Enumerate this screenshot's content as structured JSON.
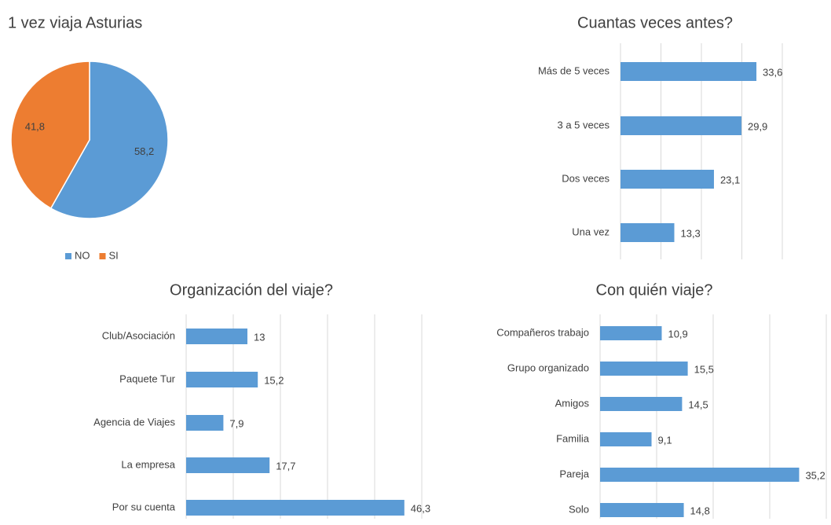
{
  "chart_data": [
    {
      "type": "pie",
      "title": "1 vez viaja Asturias",
      "categories": [
        "NO",
        "SI"
      ],
      "values": [
        58.2,
        41.8
      ],
      "value_labels": [
        "58,2",
        "41,8"
      ],
      "colors": [
        "#5b9bd5",
        "#ed7d31"
      ],
      "legend": "bottom"
    },
    {
      "type": "hbar",
      "title": "Cuantas veces antes?",
      "categories": [
        "Más de 5 veces",
        "3 a 5 veces",
        "Dos veces",
        "Una vez"
      ],
      "values": [
        33.6,
        29.9,
        23.1,
        13.3
      ],
      "value_labels": [
        "33,6",
        "29,9",
        "23,1",
        "13,3"
      ],
      "color": "#5b9bd5",
      "xlim": [
        0,
        40
      ],
      "xticks": [
        0,
        10,
        20,
        30,
        40
      ],
      "grid": true
    },
    {
      "type": "hbar",
      "title": "Organización del viaje?",
      "categories": [
        "Club/Asociación",
        "Paquete Tur",
        "Agencia de Viajes",
        "La empresa",
        "Por su cuenta"
      ],
      "values": [
        13,
        15.2,
        7.9,
        17.7,
        46.3
      ],
      "value_labels": [
        "13",
        "15,2",
        "7,9",
        "17,7",
        "46,3"
      ],
      "color": "#5b9bd5",
      "xlim": [
        0,
        50
      ],
      "xticks": [
        0,
        10,
        20,
        30,
        40,
        50
      ],
      "grid": true
    },
    {
      "type": "hbar",
      "title": "Con quién viaje?",
      "categories": [
        "Compañeros trabajo",
        "Grupo organizado",
        "Amigos",
        "Familia",
        "Pareja",
        "Solo"
      ],
      "values": [
        10.9,
        15.5,
        14.5,
        9.1,
        35.2,
        14.8
      ],
      "value_labels": [
        "10,9",
        "15,5",
        "14,5",
        "9,1",
        "35,2",
        "14,8"
      ],
      "color": "#5b9bd5",
      "xlim": [
        0,
        40
      ],
      "xticks": [
        0,
        10,
        20,
        30,
        40
      ],
      "grid": true
    }
  ]
}
